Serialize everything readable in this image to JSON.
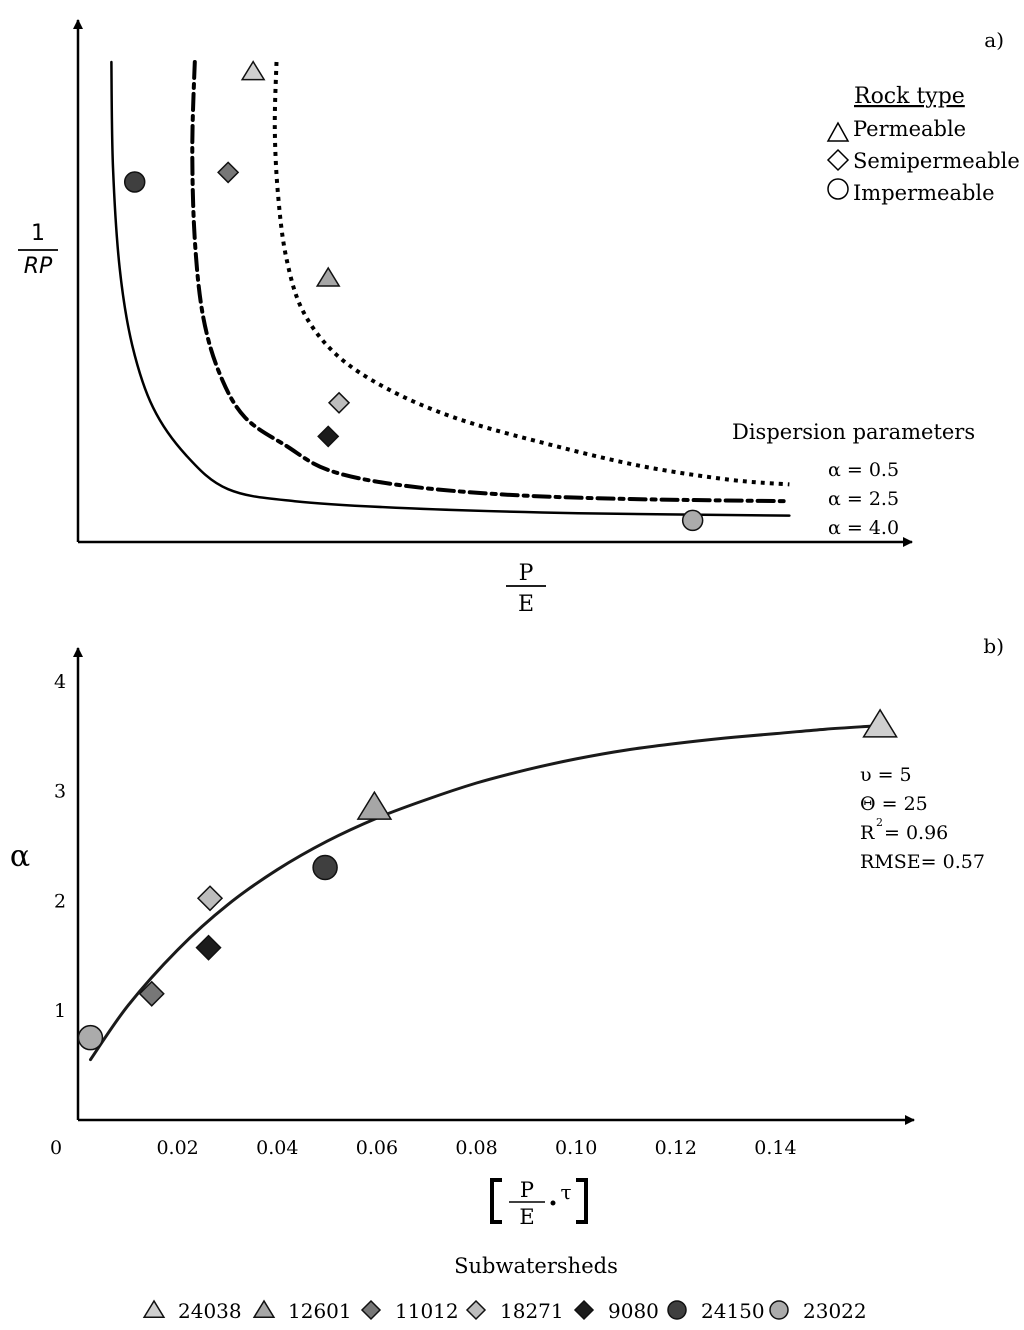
{
  "chart_data": [
    {
      "id": "a",
      "type": "line",
      "panel_label": "a)",
      "xlabel_num": "P",
      "xlabel_den": "E",
      "ylabel_num": "1",
      "ylabel_den": "RP",
      "grid": false,
      "xlim": [
        0,
        1
      ],
      "ylim": [
        0,
        1
      ],
      "series": [
        {
          "name": "α = 0.5",
          "style": "dotted",
          "x": [
            0.238,
            0.236,
            0.24,
            0.25,
            0.27,
            0.31,
            0.37,
            0.45,
            0.55,
            0.67,
            0.78,
            0.853
          ],
          "y": [
            1.0,
            0.86,
            0.72,
            0.59,
            0.48,
            0.39,
            0.32,
            0.26,
            0.21,
            0.16,
            0.13,
            0.12
          ]
        },
        {
          "name": "α = 2.5",
          "style": "dash-dot",
          "x": [
            0.14,
            0.137,
            0.14,
            0.15,
            0.17,
            0.2,
            0.25,
            0.3,
            0.38,
            0.5,
            0.65,
            0.853
          ],
          "y": [
            1.0,
            0.82,
            0.63,
            0.47,
            0.35,
            0.26,
            0.2,
            0.15,
            0.12,
            0.1,
            0.09,
            0.085
          ]
        },
        {
          "name": "α = 4.0",
          "style": "solid",
          "x": [
            0.04,
            0.042,
            0.05,
            0.065,
            0.09,
            0.13,
            0.18,
            0.26,
            0.4,
            0.6,
            0.853
          ],
          "y": [
            1.0,
            0.78,
            0.57,
            0.41,
            0.28,
            0.18,
            0.11,
            0.085,
            0.07,
            0.06,
            0.055
          ]
        }
      ],
      "points": [
        {
          "subwatershed": "24038",
          "x": 0.21,
          "y": 0.98
        },
        {
          "subwatershed": "24150",
          "x": 0.068,
          "y": 0.75
        },
        {
          "subwatershed": "11012",
          "x": 0.18,
          "y": 0.77
        },
        {
          "subwatershed": "12601",
          "x": 0.3,
          "y": 0.55
        },
        {
          "subwatershed": "18271",
          "x": 0.313,
          "y": 0.29
        },
        {
          "subwatershed": "9080",
          "x": 0.3,
          "y": 0.22
        },
        {
          "subwatershed": "23022",
          "x": 0.737,
          "y": 0.045
        }
      ],
      "rock_legend": {
        "title": "Rock type",
        "items": [
          {
            "shape": "triangle",
            "label": "Permeable"
          },
          {
            "shape": "diamond",
            "label": "Semipermeable"
          },
          {
            "shape": "circle",
            "label": "Impermeable"
          }
        ]
      },
      "dispersion_title": "Dispersion parameters"
    },
    {
      "id": "b",
      "type": "scatter",
      "panel_label": "b)",
      "xlabel_num": "P",
      "xlabel_den": "E",
      "xlabel_tau": "τ",
      "ylabel": "α",
      "grid": false,
      "xlim": [
        0,
        0.165
      ],
      "ylim": [
        0,
        4.3
      ],
      "xticks": [
        0.02,
        0.04,
        0.06,
        0.08,
        0.1,
        0.12,
        0.14
      ],
      "xtick_labels": [
        "0.02",
        "0.04",
        "0.06",
        "0.08",
        "0.10",
        "0.12",
        "0.14"
      ],
      "yticks": [
        1,
        2,
        3,
        4
      ],
      "ytick_labels": [
        "1",
        "2",
        "3",
        "4"
      ],
      "origin_label": "0",
      "fit_curve": {
        "x": [
          0.0025,
          0.01,
          0.02,
          0.03,
          0.04,
          0.05,
          0.06,
          0.07,
          0.08,
          0.09,
          0.1,
          0.11,
          0.12,
          0.13,
          0.14,
          0.15,
          0.16
        ],
        "y": [
          0.55,
          1.04,
          1.55,
          1.96,
          2.28,
          2.54,
          2.75,
          2.92,
          3.07,
          3.19,
          3.29,
          3.37,
          3.43,
          3.48,
          3.52,
          3.56,
          3.59
        ]
      },
      "points": [
        {
          "subwatershed": "24038",
          "x": 0.161,
          "y": 3.6,
          "large": true
        },
        {
          "subwatershed": "12601",
          "x": 0.0595,
          "y": 2.85,
          "large": true
        },
        {
          "subwatershed": "11012",
          "x": 0.0148,
          "y": 1.15
        },
        {
          "subwatershed": "18271",
          "x": 0.0265,
          "y": 2.02
        },
        {
          "subwatershed": "9080",
          "x": 0.0262,
          "y": 1.57
        },
        {
          "subwatershed": "24150",
          "x": 0.0496,
          "y": 2.3
        },
        {
          "subwatershed": "23022",
          "x": 0.0025,
          "y": 0.75
        }
      ],
      "stats": {
        "upsilon": "υ = 5",
        "theta": "Θ = 25",
        "r_letter": "R",
        "r_sup": "2",
        "r_value": "= 0.96",
        "rmse": "RMSE= 0.57"
      }
    }
  ],
  "legend": {
    "title": "Subwatersheds",
    "items": [
      {
        "id": "24038",
        "shape": "triangle",
        "color": "#cfcfcf",
        "label": "24038"
      },
      {
        "id": "12601",
        "shape": "triangle",
        "color": "#a6a6a6",
        "label": "12601"
      },
      {
        "id": "11012",
        "shape": "diamond",
        "color": "#777777",
        "label": "11012"
      },
      {
        "id": "18271",
        "shape": "diamond",
        "color": "#bdbdbd",
        "label": "18271"
      },
      {
        "id": "9080",
        "shape": "diamond",
        "color": "#1c1c1c",
        "label": "9080"
      },
      {
        "id": "24150",
        "shape": "circle",
        "color": "#3f3f3f",
        "label": "24150"
      },
      {
        "id": "23022",
        "shape": "circle",
        "color": "#ababab",
        "label": "23022"
      }
    ]
  }
}
